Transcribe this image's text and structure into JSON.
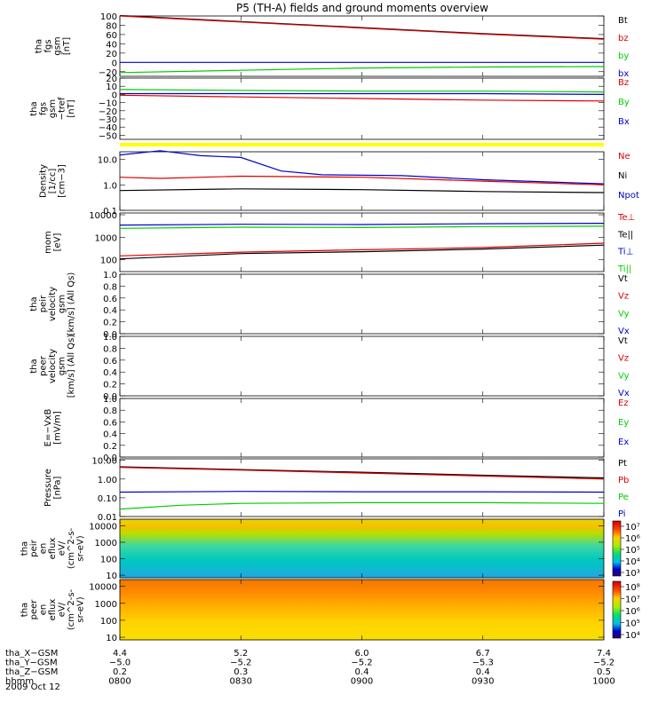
{
  "title": "P5 (TH-A) fields and ground moments overview",
  "colors": {
    "black": "#000000",
    "red": "#dd0000",
    "green": "#00cc00",
    "blue": "#0000cc",
    "yellow": "#ffff00"
  },
  "chart_data": [
    {
      "id": "fgs_gsm",
      "type": "line",
      "ylabel": [
        "tha",
        "fgs",
        "gsm",
        "[nT]"
      ],
      "ylim": [
        -30,
        100
      ],
      "ticks": [
        {
          "v": 100,
          "t": "100"
        },
        {
          "v": 80,
          "t": "80"
        },
        {
          "v": 60,
          "t": "60"
        },
        {
          "v": 40,
          "t": "40"
        },
        {
          "v": 20,
          "t": "20"
        },
        {
          "v": 0,
          "t": "0"
        },
        {
          "v": -20,
          "t": "−20"
        }
      ],
      "legend": [
        {
          "name": "Bt",
          "color": "#000000"
        },
        {
          "name": "bz",
          "color": "#dd0000"
        },
        {
          "name": "by",
          "color": "#00cc00"
        },
        {
          "name": "bx",
          "color": "#0000cc"
        }
      ],
      "series": [
        {
          "color": "#000000",
          "x": [
            0,
            30,
            60,
            90,
            120
          ],
          "y": [
            101,
            88,
            75,
            62,
            51
          ]
        },
        {
          "color": "#dd0000",
          "x": [
            0,
            30,
            60,
            90,
            120
          ],
          "y": [
            100,
            87,
            74,
            61,
            50
          ]
        },
        {
          "color": "#00cc00",
          "x": [
            0,
            30,
            60,
            90,
            120
          ],
          "y": [
            -22,
            -17,
            -12,
            -10,
            -9
          ]
        },
        {
          "color": "#0000cc",
          "x": [
            0,
            30,
            60,
            90,
            120
          ],
          "y": [
            0,
            0,
            0,
            0,
            0
          ]
        }
      ]
    },
    {
      "id": "fgs_detrend",
      "type": "line",
      "ylabel": [
        "tha",
        "fgs",
        "gsm",
        "−tref",
        "[nT]"
      ],
      "ylim": [
        -55,
        20
      ],
      "ticks": [
        {
          "v": 20,
          "t": "20"
        },
        {
          "v": 10,
          "t": "10"
        },
        {
          "v": 0,
          "t": "0"
        },
        {
          "v": -10,
          "t": "−10"
        },
        {
          "v": -20,
          "t": "−20"
        },
        {
          "v": -30,
          "t": "−30"
        },
        {
          "v": -40,
          "t": "−40"
        },
        {
          "v": -50,
          "t": "−50"
        }
      ],
      "legend": [
        {
          "name": "Bz",
          "color": "#dd0000"
        },
        {
          "name": "By",
          "color": "#00cc00"
        },
        {
          "name": "Bx",
          "color": "#0000cc"
        }
      ],
      "series": [
        {
          "color": "#dd0000",
          "x": [
            0,
            30,
            60,
            90,
            120
          ],
          "y": [
            -1,
            -3,
            -5,
            -7,
            -8
          ]
        },
        {
          "color": "#00cc00",
          "x": [
            0,
            30,
            60,
            90,
            120
          ],
          "y": [
            6,
            5,
            4,
            4,
            3
          ]
        },
        {
          "color": "#0000cc",
          "x": [
            0,
            30,
            60,
            90,
            120
          ],
          "y": [
            1,
            1,
            1,
            1,
            0
          ]
        }
      ]
    },
    {
      "id": "density",
      "type": "line",
      "ylabel": [
        "Density",
        "[1/cc]",
        "[cm−3]"
      ],
      "log": true,
      "ylim": [
        0.1,
        20
      ],
      "ticks": [
        {
          "v": 10,
          "t": "10.0"
        },
        {
          "v": 1,
          "t": "1.0"
        },
        {
          "v": 0.1,
          "t": "0.1"
        }
      ],
      "legend": [
        {
          "name": "Ne",
          "color": "#dd0000"
        },
        {
          "name": "Ni",
          "color": "#000000"
        },
        {
          "name": "Npot",
          "color": "#0000cc"
        }
      ],
      "series": [
        {
          "color": "#0000cc",
          "x": [
            0,
            10,
            20,
            30,
            40,
            50,
            70,
            90,
            120
          ],
          "y": [
            15,
            22,
            14,
            12,
            3.5,
            2.5,
            2.3,
            1.6,
            1.1
          ]
        },
        {
          "color": "#dd0000",
          "x": [
            0,
            10,
            30,
            60,
            90,
            120
          ],
          "y": [
            2,
            1.8,
            2.2,
            2.0,
            1.4,
            1.0
          ]
        },
        {
          "color": "#000000",
          "x": [
            0,
            30,
            60,
            90,
            120
          ],
          "y": [
            0.6,
            0.7,
            0.65,
            0.55,
            0.5
          ]
        }
      ]
    },
    {
      "id": "temperature",
      "type": "line",
      "ylabel": [
        "mom",
        "[eV]"
      ],
      "log": true,
      "ylim": [
        30,
        12000
      ],
      "ticks": [
        {
          "v": 10000,
          "t": "10000"
        },
        {
          "v": 1000,
          "t": "1000"
        },
        {
          "v": 100,
          "t": "100"
        }
      ],
      "legend": [
        {
          "name": "Te⊥",
          "color": "#dd0000"
        },
        {
          "name": "Te||",
          "color": "#000000"
        },
        {
          "name": "Ti⊥",
          "color": "#0000cc"
        },
        {
          "name": "Ti||",
          "color": "#00cc00"
        }
      ],
      "series": [
        {
          "color": "#0000cc",
          "x": [
            0,
            30,
            60,
            90,
            120
          ],
          "y": [
            3500,
            3800,
            3700,
            4000,
            4200
          ]
        },
        {
          "color": "#00cc00",
          "x": [
            0,
            30,
            60,
            90,
            120
          ],
          "y": [
            2500,
            2800,
            2700,
            3000,
            3100
          ]
        },
        {
          "color": "#dd0000",
          "x": [
            0,
            30,
            60,
            90,
            120
          ],
          "y": [
            150,
            220,
            280,
            350,
            550
          ]
        },
        {
          "color": "#000000",
          "x": [
            0,
            30,
            60,
            90,
            120
          ],
          "y": [
            110,
            190,
            230,
            300,
            450
          ]
        }
      ]
    },
    {
      "id": "peir_vel",
      "type": "line",
      "ylabel": [
        "tha",
        "peir",
        "velocity",
        "gsm",
        "[km/s] (All Qs)"
      ],
      "ylim": [
        0,
        1
      ],
      "ticks": [
        {
          "v": 1,
          "t": "1.0"
        },
        {
          "v": 0.8,
          "t": "0.8"
        },
        {
          "v": 0.6,
          "t": "0.6"
        },
        {
          "v": 0.4,
          "t": "0.4"
        },
        {
          "v": 0.2,
          "t": "0.2"
        },
        {
          "v": 0,
          "t": "0.0"
        }
      ],
      "legend": [
        {
          "name": "Vt",
          "color": "#000000"
        },
        {
          "name": "Vz",
          "color": "#dd0000"
        },
        {
          "name": "Vy",
          "color": "#00cc00"
        },
        {
          "name": "Vx",
          "color": "#0000cc"
        }
      ],
      "series": []
    },
    {
      "id": "peer_vel",
      "type": "line",
      "ylabel": [
        "tha",
        "peer",
        "velocity",
        "gsm",
        "[km/s] (All Qs)"
      ],
      "ylim": [
        0,
        1
      ],
      "ticks": [
        {
          "v": 1,
          "t": "1.0"
        },
        {
          "v": 0.8,
          "t": "0.8"
        },
        {
          "v": 0.6,
          "t": "0.6"
        },
        {
          "v": 0.4,
          "t": "0.4"
        },
        {
          "v": 0.2,
          "t": "0.2"
        },
        {
          "v": 0,
          "t": "0.0"
        }
      ],
      "legend": [
        {
          "name": "Vt",
          "color": "#000000"
        },
        {
          "name": "Vz",
          "color": "#dd0000"
        },
        {
          "name": "Vy",
          "color": "#00cc00"
        },
        {
          "name": "Vx",
          "color": "#0000cc"
        }
      ],
      "series": []
    },
    {
      "id": "efield",
      "type": "line",
      "ylabel": [
        "E=−VxB",
        "[mV/m]"
      ],
      "ylim": [
        0,
        1
      ],
      "ticks": [
        {
          "v": 1,
          "t": "1.0"
        },
        {
          "v": 0.8,
          "t": "0.8"
        },
        {
          "v": 0.6,
          "t": "0.6"
        },
        {
          "v": 0.4,
          "t": "0.4"
        },
        {
          "v": 0.2,
          "t": "0.2"
        },
        {
          "v": 0,
          "t": "0.0"
        }
      ],
      "legend": [
        {
          "name": "Ez",
          "color": "#dd0000"
        },
        {
          "name": "Ey",
          "color": "#00cc00"
        },
        {
          "name": "Ex",
          "color": "#0000cc"
        }
      ],
      "series": []
    },
    {
      "id": "pressure",
      "type": "line",
      "ylabel": [
        "Pressure",
        "[nPa]"
      ],
      "log": true,
      "ylim": [
        0.01,
        12
      ],
      "ticks": [
        {
          "v": 10,
          "t": "10.00"
        },
        {
          "v": 1,
          "t": "1.00"
        },
        {
          "v": 0.1,
          "t": "0.10"
        },
        {
          "v": 0.01,
          "t": "0.01"
        }
      ],
      "legend": [
        {
          "name": "Pt",
          "color": "#000000"
        },
        {
          "name": "Pb",
          "color": "#dd0000"
        },
        {
          "name": "Pe",
          "color": "#00cc00"
        },
        {
          "name": "Pi",
          "color": "#0000cc"
        }
      ],
      "series": [
        {
          "color": "#000000",
          "x": [
            0,
            30,
            60,
            90,
            120
          ],
          "y": [
            4.5,
            3.2,
            2.3,
            1.6,
            1.15
          ]
        },
        {
          "color": "#dd0000",
          "x": [
            0,
            30,
            60,
            90,
            120
          ],
          "y": [
            4.2,
            3.0,
            2.1,
            1.45,
            1.0
          ]
        },
        {
          "color": "#0000cc",
          "x": [
            0,
            30,
            60,
            90,
            120
          ],
          "y": [
            0.2,
            0.22,
            0.21,
            0.21,
            0.2
          ]
        },
        {
          "color": "#00cc00",
          "x": [
            0,
            15,
            30,
            60,
            90,
            120
          ],
          "y": [
            0.025,
            0.04,
            0.05,
            0.055,
            0.055,
            0.05
          ]
        }
      ]
    },
    {
      "id": "peir_spec",
      "type": "heatmap",
      "ylabel": [
        "tha",
        "peir",
        "en",
        "eflux",
        "eV/",
        "(cm^2-s-",
        "sr-eV)"
      ],
      "log": true,
      "ylim": [
        7,
        25000
      ],
      "ticks": [
        {
          "v": 10000,
          "t": "10000"
        },
        {
          "v": 1000,
          "t": "1000"
        },
        {
          "v": 100,
          "t": "100"
        },
        {
          "v": 10,
          "t": "10"
        }
      ],
      "colorbar": {
        "ticks": [
          "10⁷",
          "10⁶",
          "10⁵",
          "10⁴",
          "10³"
        ]
      }
    },
    {
      "id": "peer_spec",
      "type": "heatmap",
      "ylabel": [
        "tha",
        "peer",
        "en",
        "eflux",
        "eV/",
        "(cm^2-s-",
        "sr-eV)"
      ],
      "log": true,
      "ylim": [
        7,
        25000
      ],
      "ticks": [
        {
          "v": 10000,
          "t": "10000"
        },
        {
          "v": 1000,
          "t": "1000"
        },
        {
          "v": 100,
          "t": "100"
        },
        {
          "v": 10,
          "t": "10"
        }
      ],
      "colorbar": {
        "ticks": [
          "10⁸",
          "10⁷",
          "10⁶",
          "10⁵",
          "10⁴"
        ]
      }
    }
  ],
  "footer": {
    "rows": [
      {
        "label": "tha_X−GSM",
        "values": [
          "4.4",
          "5.2",
          "6.0",
          "6.7",
          "7.4"
        ]
      },
      {
        "label": "tha_Y−GSM",
        "values": [
          "−5.0",
          "−5.2",
          "−5.2",
          "−5.3",
          "−5.2"
        ]
      },
      {
        "label": "tha_Z−GSM",
        "values": [
          "0.2",
          "0.3",
          "0.4",
          "0.4",
          "0.5"
        ]
      },
      {
        "label": "hhmm",
        "values": [
          "0800",
          "0830",
          "0900",
          "0930",
          "1000"
        ]
      }
    ],
    "date": "2009 Oct 12"
  }
}
